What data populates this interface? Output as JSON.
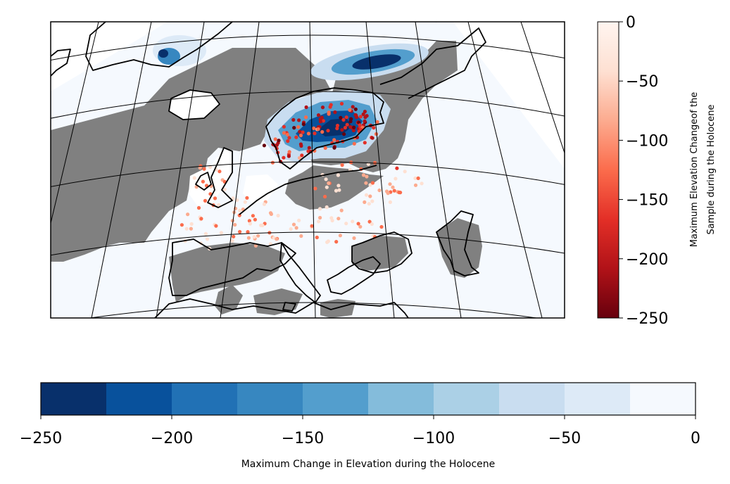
{
  "vertical_colorbar": {
    "label_line1": "Maximum Elevation Changeof the",
    "label_line2": "Sample during the Holocene",
    "colormap": "Reds_r",
    "range": [
      -250,
      0
    ],
    "ticks": [
      {
        "value": 0,
        "label": "0"
      },
      {
        "value": -50,
        "label": "−50"
      },
      {
        "value": -100,
        "label": "−100"
      },
      {
        "value": -150,
        "label": "−150"
      },
      {
        "value": -200,
        "label": "−200"
      },
      {
        "value": -250,
        "label": "−250"
      }
    ],
    "gradient_colors": [
      "#67000d",
      "#b11218",
      "#e32f27",
      "#fb6c4c",
      "#fcab8f",
      "#fee0d2",
      "#fff5f0"
    ]
  },
  "horizontal_colorbar": {
    "label": "Maximum Change in Elevation during the Holocene",
    "colormap": "Blues_r",
    "range": [
      -250,
      0
    ],
    "bins": [
      {
        "from": -250,
        "to": -225,
        "color": "#08306b"
      },
      {
        "from": -225,
        "to": -200,
        "color": "#08519c"
      },
      {
        "from": -200,
        "to": -175,
        "color": "#2171b5"
      },
      {
        "from": -175,
        "to": -150,
        "color": "#3787c0"
      },
      {
        "from": -150,
        "to": -125,
        "color": "#539ecd"
      },
      {
        "from": -125,
        "to": -100,
        "color": "#84bcdb"
      },
      {
        "from": -100,
        "to": -75,
        "color": "#abd0e6"
      },
      {
        "from": -75,
        "to": -50,
        "color": "#c9ddf0"
      },
      {
        "from": -50,
        "to": -25,
        "color": "#ddeaf7"
      },
      {
        "from": -25,
        "to": 0,
        "color": "#f5f9fe"
      }
    ],
    "ticks": [
      {
        "value": -250,
        "label": "−250"
      },
      {
        "value": -200,
        "label": "−200"
      },
      {
        "value": -150,
        "label": "−150"
      },
      {
        "value": -100,
        "label": "−100"
      },
      {
        "value": -50,
        "label": "−50"
      },
      {
        "value": 0,
        "label": "0"
      }
    ]
  },
  "map": {
    "projection": "Lambert conformal conic",
    "colors": {
      "no_data_land": "#808080",
      "coastline": "#000000",
      "graticule": "#000000",
      "ice_core": "#08306b",
      "ice_mid": "#3787c0",
      "ice_edge": "#c9ddf0",
      "background_zero": "#f5f9fe",
      "sample_points": [
        "#67000d",
        "#b11218",
        "#e32f27",
        "#fb6c4c",
        "#fcab8f",
        "#fee0d2"
      ]
    }
  }
}
